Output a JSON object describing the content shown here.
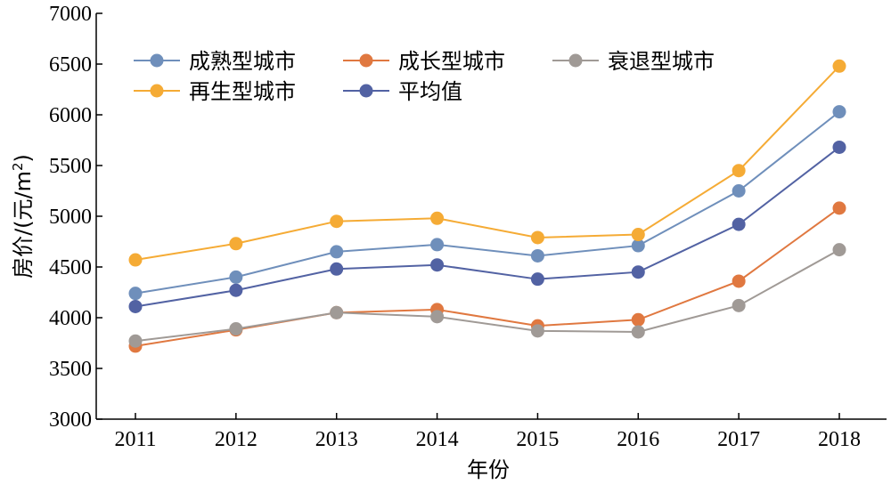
{
  "chart_data": {
    "type": "line",
    "title": "",
    "xlabel": "年份",
    "ylabel": "房价/(元/m²)",
    "ylabel_parts": {
      "main": "房价/(元/m",
      "sup": "2",
      "close": ")"
    },
    "categories": [
      "2011",
      "2012",
      "2013",
      "2014",
      "2015",
      "2016",
      "2017",
      "2018"
    ],
    "ylim": [
      3000,
      7000
    ],
    "yticks": [
      3000,
      3500,
      4000,
      4500,
      5000,
      5500,
      6000,
      6500,
      7000
    ],
    "grid": false,
    "legend_position": "top-left",
    "series": [
      {
        "name": "成熟型城市",
        "color": "#6f8fbb",
        "values": [
          4240,
          4400,
          4650,
          4720,
          4610,
          4710,
          5250,
          6030
        ]
      },
      {
        "name": "成长型城市",
        "color": "#e07840",
        "values": [
          3720,
          3880,
          4050,
          4080,
          3920,
          3980,
          4360,
          5080
        ]
      },
      {
        "name": "衰退型城市",
        "color": "#a09a96",
        "values": [
          3770,
          3890,
          4050,
          4010,
          3870,
          3860,
          4120,
          4670
        ]
      },
      {
        "name": "再生型城市",
        "color": "#f5ab35",
        "values": [
          4570,
          4730,
          4950,
          4980,
          4790,
          4820,
          5450,
          6480
        ]
      },
      {
        "name": "平均值",
        "color": "#5262a3",
        "values": [
          4110,
          4270,
          4480,
          4520,
          4380,
          4450,
          4920,
          5680
        ]
      }
    ]
  }
}
